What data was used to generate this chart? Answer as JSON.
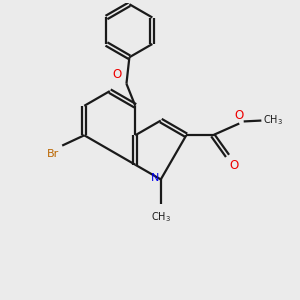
{
  "bg_color": "#ebebeb",
  "bond_color": "#1a1a1a",
  "bond_width": 1.6,
  "N_color": "#0000ee",
  "O_color": "#ee0000",
  "Br_color": "#bb6600",
  "figsize": [
    3.0,
    3.0
  ],
  "dpi": 100,
  "xlim": [
    0,
    10
  ],
  "ylim": [
    0,
    10
  ]
}
